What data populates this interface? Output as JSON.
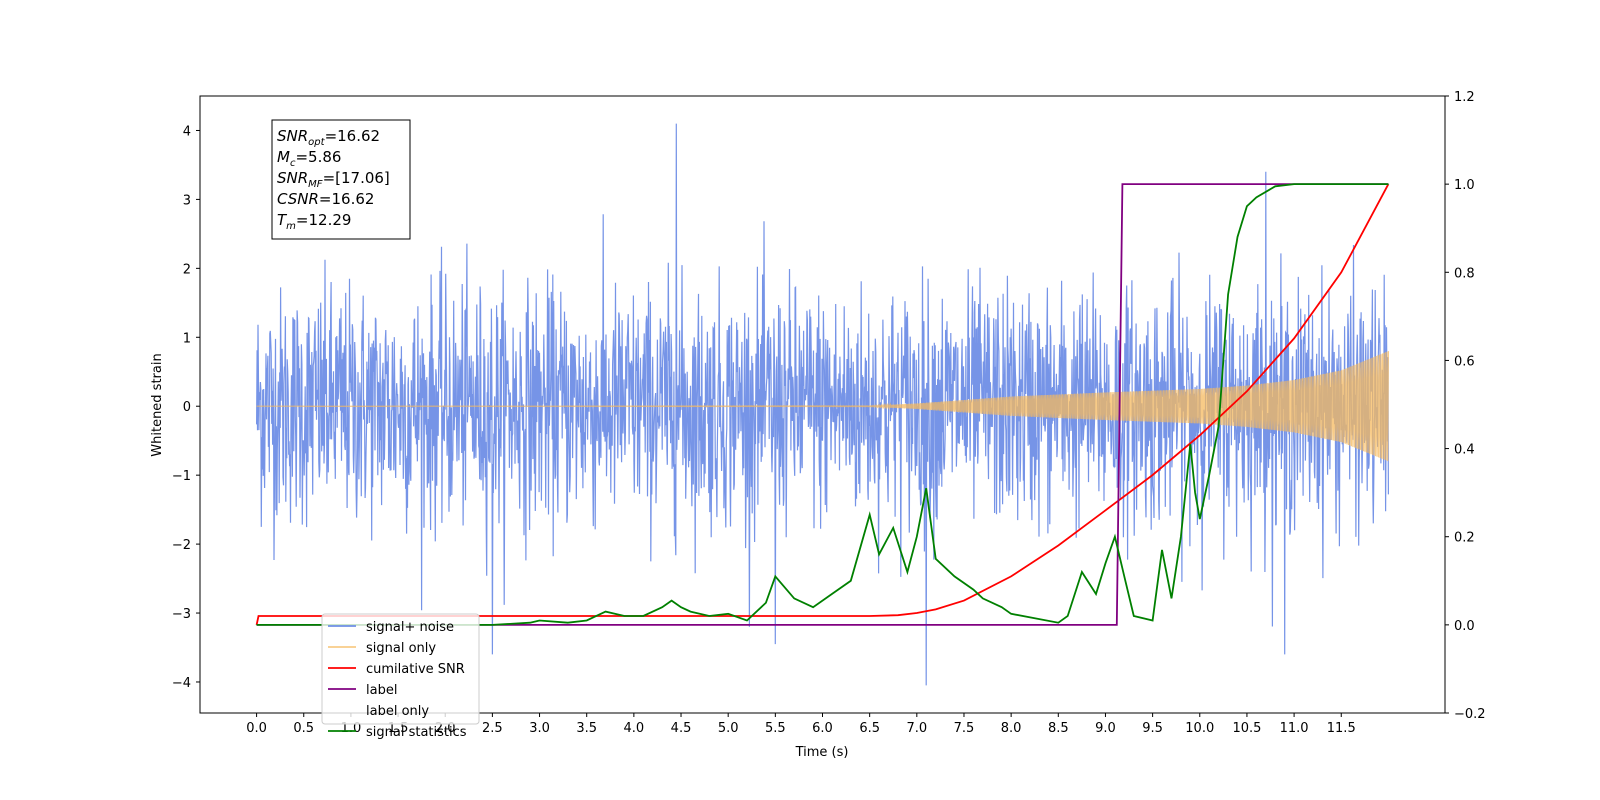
{
  "chart_data": {
    "type": "line",
    "xlabel": "Time (s)",
    "ylabel": "Whitened strain",
    "xlim": [
      -0.6,
      12.6
    ],
    "ylim": [
      -4.45,
      4.5
    ],
    "y2lim": [
      -0.2,
      1.2
    ],
    "x_ticks": [
      "0.0",
      "0.5",
      "1.0",
      "1.5",
      "2.0",
      "2.5",
      "3.0",
      "3.5",
      "4.0",
      "4.5",
      "5.0",
      "5.5",
      "6.0",
      "6.5",
      "7.0",
      "7.5",
      "8.0",
      "8.5",
      "9.0",
      "9.5",
      "10.0",
      "10.5",
      "11.0",
      "11.5"
    ],
    "y_ticks": [
      "−4",
      "−3",
      "−2",
      "−1",
      "0",
      "1",
      "2",
      "3",
      "4"
    ],
    "y2_ticks": [
      "−0.2",
      "0.0",
      "0.2",
      "0.4",
      "0.6",
      "0.8",
      "1.0",
      "1.2"
    ],
    "grid": false,
    "legend_position": "lower-left",
    "annotation_box": {
      "lines": [
        {
          "main": "SNR",
          "sub": "opt",
          "rest": "=16.62"
        },
        {
          "main": "M",
          "sub": "c",
          "rest": "=5.86"
        },
        {
          "main": "SNR",
          "sub": "MF",
          "rest": "=[17.06]"
        },
        {
          "main": "CSNR",
          "sub": "",
          "rest": "=16.62"
        },
        {
          "main": "T",
          "sub": "m",
          "rest": "=12.29"
        }
      ]
    },
    "series": [
      {
        "name": "signal+ noise",
        "color": "#6f8ee6",
        "axis": "left",
        "description_values": {
          "noise_std": 0.85,
          "peaks": [
            [
              4.45,
              4.1
            ],
            [
              7.1,
              -4.05
            ],
            [
              2.5,
              -3.6
            ],
            [
              10.7,
              3.4
            ],
            [
              10.9,
              -3.6
            ],
            [
              5.5,
              -3.45
            ]
          ]
        }
      },
      {
        "name": "signal only",
        "color": "#f5b95f",
        "axis": "left",
        "envelope": {
          "x": [
            0.0,
            6.5,
            7.0,
            8.0,
            9.0,
            10.0,
            10.5,
            11.0,
            11.5,
            12.0
          ],
          "y": [
            0.0,
            0.005,
            0.04,
            0.14,
            0.2,
            0.25,
            0.3,
            0.38,
            0.52,
            0.8
          ]
        }
      },
      {
        "name": "cumilative SNR",
        "color": "#ff0000",
        "axis": "right",
        "x": [
          0.0,
          0.02,
          6.5,
          6.8,
          7.0,
          7.2,
          7.5,
          8.0,
          8.5,
          9.0,
          9.5,
          10.0,
          10.5,
          11.0,
          11.5,
          12.0
        ],
        "y": [
          0.0,
          0.02,
          0.02,
          0.022,
          0.027,
          0.035,
          0.055,
          0.11,
          0.18,
          0.26,
          0.34,
          0.43,
          0.53,
          0.65,
          0.8,
          1.0
        ]
      },
      {
        "name": "label",
        "color": "#800080",
        "axis": "right",
        "x": [
          0.0,
          9.12,
          9.18,
          12.0
        ],
        "y": [
          0.0,
          0.0,
          1.0,
          1.0
        ]
      },
      {
        "name": "label only",
        "color": "#ffffff",
        "axis": "right",
        "x": [],
        "y": []
      },
      {
        "name": "signal statistics",
        "color": "#008000",
        "axis": "right",
        "x": [
          0.0,
          2.5,
          2.9,
          3.0,
          3.3,
          3.5,
          3.7,
          3.9,
          4.1,
          4.3,
          4.4,
          4.5,
          4.6,
          4.8,
          5.0,
          5.2,
          5.4,
          5.5,
          5.7,
          5.9,
          6.1,
          6.3,
          6.5,
          6.6,
          6.75,
          6.9,
          7.0,
          7.1,
          7.2,
          7.4,
          7.6,
          7.7,
          7.9,
          8.0,
          8.5,
          8.6,
          8.75,
          8.9,
          9.0,
          9.1,
          9.2,
          9.3,
          9.5,
          9.6,
          9.7,
          9.8,
          9.9,
          9.95,
          10.0,
          10.1,
          10.2,
          10.3,
          10.4,
          10.5,
          10.6,
          10.8,
          11.0,
          11.5,
          12.0
        ],
        "y": [
          0.0,
          0.0,
          0.005,
          0.01,
          0.005,
          0.01,
          0.03,
          0.02,
          0.02,
          0.04,
          0.055,
          0.04,
          0.03,
          0.02,
          0.025,
          0.01,
          0.05,
          0.11,
          0.06,
          0.04,
          0.07,
          0.1,
          0.25,
          0.16,
          0.22,
          0.12,
          0.2,
          0.31,
          0.15,
          0.11,
          0.08,
          0.06,
          0.04,
          0.025,
          0.005,
          0.02,
          0.12,
          0.07,
          0.14,
          0.2,
          0.11,
          0.02,
          0.01,
          0.17,
          0.06,
          0.2,
          0.41,
          0.3,
          0.24,
          0.34,
          0.45,
          0.75,
          0.88,
          0.95,
          0.97,
          0.995,
          1.0,
          1.0,
          1.0
        ]
      }
    ]
  }
}
